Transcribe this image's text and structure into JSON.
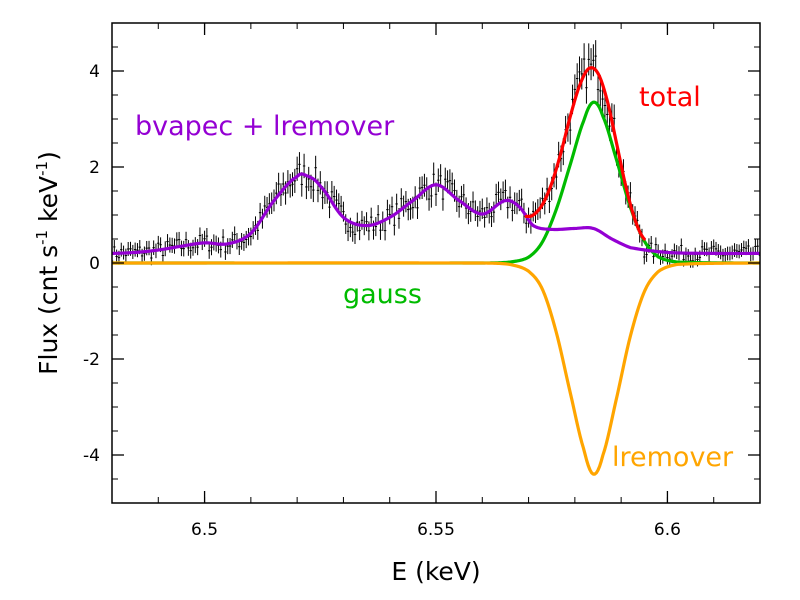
{
  "chart_data": {
    "type": "line",
    "xlabel": "E (keV)",
    "ylabel": "Flux (cnt s",
    "ylabel_sup1": "-1",
    "ylabel_mid": " keV",
    "ylabel_sup2": "-1",
    "ylabel_end": ")",
    "xlim": [
      6.48,
      6.62
    ],
    "ylim": [
      -5,
      5
    ],
    "x_ticks": [
      {
        "value": 6.5,
        "label": "6.5"
      },
      {
        "value": 6.55,
        "label": "6.55"
      },
      {
        "value": 6.6,
        "label": "6.6"
      }
    ],
    "y_ticks": [
      {
        "value": 4,
        "label": "4"
      },
      {
        "value": 2,
        "label": "2"
      },
      {
        "value": 0,
        "label": "0"
      },
      {
        "value": -2,
        "label": "-2"
      },
      {
        "value": -4,
        "label": "-4"
      }
    ],
    "grid": false,
    "series": [
      {
        "name": "total",
        "color": "#ff0000",
        "x": [
          6.5695,
          6.571,
          6.573,
          6.575,
          6.577,
          6.579,
          6.581,
          6.583,
          6.585,
          6.587,
          6.589,
          6.591,
          6.593,
          6.595
        ],
        "y": [
          0.97,
          1.0,
          1.22,
          1.66,
          2.3,
          3.05,
          3.69,
          4.05,
          3.95,
          3.38,
          2.5,
          1.6,
          0.9,
          0.5
        ]
      },
      {
        "name": "bvapec + lremover",
        "color": "#9400d3",
        "x": [
          6.48,
          6.485,
          6.49,
          6.495,
          6.5,
          6.505,
          6.51,
          6.515,
          6.52,
          6.522,
          6.525,
          6.53,
          6.535,
          6.54,
          6.545,
          6.55,
          6.555,
          6.56,
          6.565,
          6.568,
          6.571,
          6.575,
          6.58,
          6.584,
          6.588,
          6.592,
          6.6,
          6.61,
          6.62
        ],
        "y": [
          0.2,
          0.22,
          0.27,
          0.35,
          0.42,
          0.4,
          0.62,
          1.3,
          1.8,
          1.82,
          1.6,
          0.95,
          0.78,
          0.95,
          1.3,
          1.63,
          1.3,
          1.02,
          1.3,
          1.17,
          0.78,
          0.7,
          0.72,
          0.72,
          0.5,
          0.32,
          0.22,
          0.2,
          0.2
        ]
      },
      {
        "name": "gauss",
        "color": "#00bb00",
        "x": [
          6.48,
          6.56,
          6.566,
          6.57,
          6.573,
          6.576,
          6.579,
          6.582,
          6.584,
          6.586,
          6.589,
          6.592,
          6.595,
          6.598,
          6.602,
          6.62
        ],
        "y": [
          0,
          0,
          0.02,
          0.12,
          0.44,
          1.12,
          2.05,
          2.98,
          3.35,
          3.07,
          2.15,
          1.16,
          0.46,
          0.13,
          0.02,
          0
        ]
      },
      {
        "name": "lremover",
        "color": "#ffa500",
        "x": [
          6.48,
          6.56,
          6.566,
          6.57,
          6.573,
          6.576,
          6.579,
          6.582,
          6.584,
          6.586,
          6.589,
          6.592,
          6.595,
          6.598,
          6.602,
          6.62
        ],
        "y": [
          0,
          0,
          -0.03,
          -0.17,
          -0.55,
          -1.45,
          -2.7,
          -3.9,
          -4.4,
          -4.02,
          -2.82,
          -1.52,
          -0.6,
          -0.18,
          -0.03,
          0
        ]
      }
    ],
    "annotations": [
      {
        "text": "bvapec + lremover",
        "color": "#9400d3"
      },
      {
        "text": "total",
        "color": "#ff0000"
      },
      {
        "text": "gauss",
        "color": "#00bb00"
      },
      {
        "text": "lremover",
        "color": "#ffa500"
      }
    ],
    "data_points": {
      "name": "data",
      "color": "#000000",
      "x_start": 6.48,
      "x_step": 0.0005,
      "count": 281,
      "model": "total",
      "scatter_note": "black crosses with error bars following the total model"
    }
  }
}
